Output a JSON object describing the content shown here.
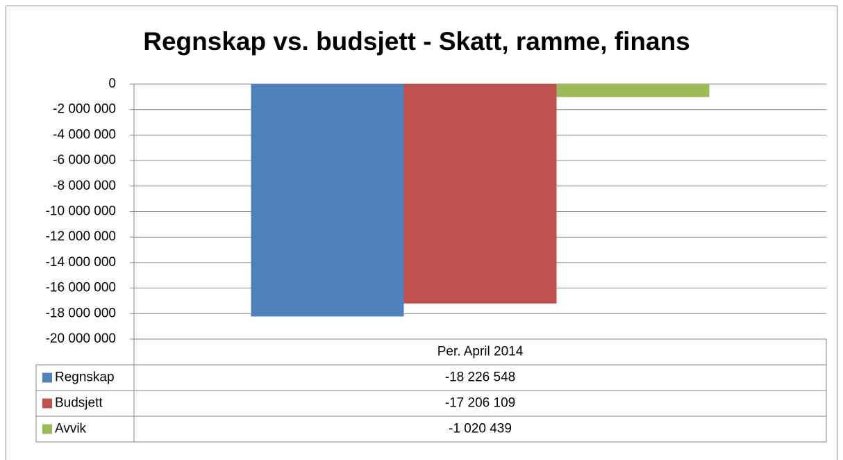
{
  "chart_data": {
    "type": "bar",
    "title": "Regnskap vs. budsjett - Skatt, ramme, finans",
    "categories": [
      "Per. April 2014"
    ],
    "series": [
      {
        "name": "Regnskap",
        "color": "#4f81bd",
        "values": [
          -18226548
        ],
        "value_labels": [
          "-18 226 548"
        ]
      },
      {
        "name": "Budsjett",
        "color": "#c0504d",
        "values": [
          -17206109
        ],
        "value_labels": [
          "-17 206 109"
        ]
      },
      {
        "name": "Avvik",
        "color": "#9bbb59",
        "values": [
          -1020439
        ],
        "value_labels": [
          "-1 020 439"
        ]
      }
    ],
    "ylim": [
      -20000000,
      0
    ],
    "yticks": [
      0,
      {
        "value": -2000000,
        "label": "-2 000 000"
      },
      {
        "value": -4000000,
        "label": "-4 000 000"
      },
      {
        "value": -6000000,
        "label": "-6 000 000"
      },
      {
        "value": -8000000,
        "label": "-8 000 000"
      },
      {
        "value": -10000000,
        "label": "-10 000 000"
      },
      {
        "value": -12000000,
        "label": "-12 000 000"
      },
      {
        "value": -14000000,
        "label": "-14 000 000"
      },
      {
        "value": -16000000,
        "label": "-16 000 000"
      },
      {
        "value": -18000000,
        "label": "-18 000 000"
      },
      {
        "value": -20000000,
        "label": "-20 000 000"
      }
    ],
    "grid": true,
    "data_table": true
  }
}
